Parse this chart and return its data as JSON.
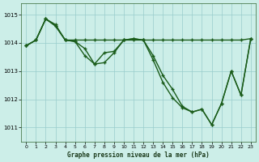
{
  "background_color": "#cceee8",
  "line_color": "#1a5c1a",
  "grid_color": "#99cccc",
  "title": "Graphe pression niveau de la mer (hPa)",
  "xlim": [
    -0.5,
    23.5
  ],
  "ylim": [
    1010.5,
    1015.4
  ],
  "yticks": [
    1011,
    1012,
    1013,
    1014,
    1015
  ],
  "xticks": [
    0,
    1,
    2,
    3,
    4,
    5,
    6,
    7,
    8,
    9,
    10,
    11,
    12,
    13,
    14,
    15,
    16,
    17,
    18,
    19,
    20,
    21,
    22,
    23
  ],
  "series1_x": [
    0,
    1,
    2,
    3,
    4,
    5,
    6,
    7,
    8,
    9,
    10,
    11,
    12,
    13,
    14,
    15,
    16,
    17,
    18,
    19,
    20,
    21,
    22,
    23
  ],
  "series1_y": [
    1013.9,
    1014.1,
    1014.85,
    1014.65,
    1014.1,
    1014.1,
    1014.1,
    1014.1,
    1014.1,
    1014.1,
    1014.1,
    1014.1,
    1014.1,
    1014.1,
    1014.1,
    1014.1,
    1014.1,
    1014.1,
    1014.1,
    1014.1,
    1014.1,
    1014.1,
    1014.1,
    1014.15
  ],
  "series2_x": [
    0,
    1,
    2,
    3,
    4,
    5,
    6,
    7,
    8,
    9,
    10,
    11,
    12,
    13,
    14,
    15,
    16,
    17,
    18,
    19,
    20,
    21,
    22,
    23
  ],
  "series2_y": [
    1013.9,
    1014.1,
    1014.85,
    1014.6,
    1014.1,
    1014.05,
    1013.55,
    1013.25,
    1013.65,
    1013.7,
    1014.1,
    1014.15,
    1014.1,
    1013.55,
    1012.85,
    1012.35,
    1011.75,
    1011.55,
    1011.65,
    1011.1,
    1011.85,
    1013.0,
    1012.15,
    1014.15
  ],
  "series3_x": [
    0,
    1,
    2,
    3,
    4,
    5,
    6,
    7,
    8,
    9,
    10,
    11,
    12,
    13,
    14,
    15,
    16,
    17,
    18,
    19,
    20,
    21,
    22,
    23
  ],
  "series3_y": [
    1013.9,
    1014.1,
    1014.85,
    1014.6,
    1014.1,
    1014.05,
    1013.8,
    1013.25,
    1013.3,
    1013.65,
    1014.1,
    1014.15,
    1014.1,
    1013.4,
    1012.6,
    1012.05,
    1011.7,
    1011.55,
    1011.65,
    1011.1,
    1011.85,
    1013.0,
    1012.15,
    1014.15
  ]
}
